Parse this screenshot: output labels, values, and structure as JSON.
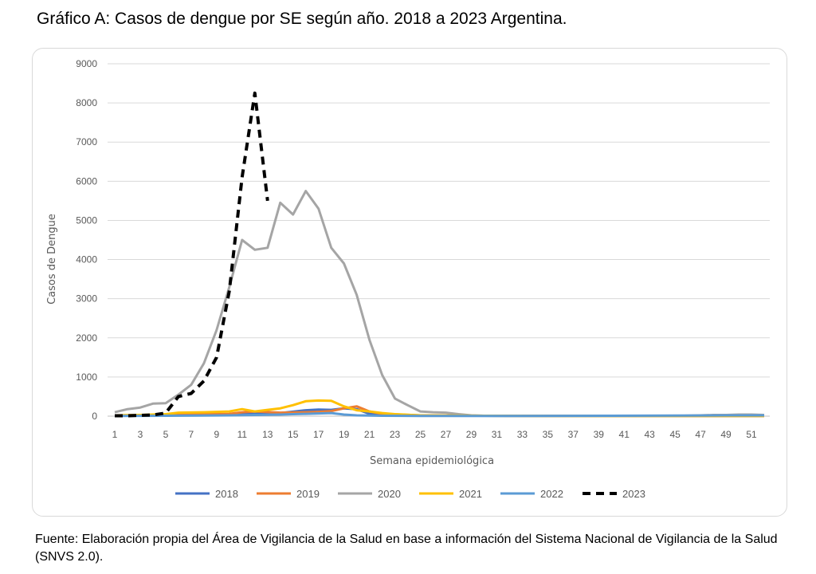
{
  "title": "Gráfico A: Casos de dengue por SE según año. 2018 a 2023 Argentina.",
  "source": "Fuente: Elaboración propia del Área de Vigilancia de la Salud en base a información del Sistema Nacional  de Vigilancia de la Salud (SNVS 2.0).",
  "chart_data": {
    "type": "line",
    "title": "",
    "xlabel": "Semana epidemiológica",
    "ylabel": "Casos de Dengue",
    "ylim": [
      0,
      9000
    ],
    "yticks": [
      0,
      1000,
      2000,
      3000,
      4000,
      5000,
      6000,
      7000,
      8000,
      9000
    ],
    "xlim": [
      1,
      52
    ],
    "xticks": [
      1,
      3,
      5,
      7,
      9,
      11,
      13,
      15,
      17,
      19,
      21,
      23,
      25,
      27,
      29,
      31,
      33,
      35,
      37,
      39,
      41,
      43,
      45,
      47,
      49,
      51
    ],
    "grid": "horizontal",
    "legend": "bottom",
    "series": [
      {
        "name": "2018",
        "color": "#4472C4",
        "dash": false,
        "x": [
          1,
          5,
          10,
          14,
          16,
          17,
          18,
          19,
          20,
          21,
          23,
          27,
          35,
          45,
          52
        ],
        "y": [
          20,
          25,
          40,
          80,
          150,
          170,
          160,
          200,
          180,
          60,
          20,
          10,
          5,
          5,
          5
        ]
      },
      {
        "name": "2019",
        "color": "#ED7D31",
        "dash": false,
        "x": [
          1,
          5,
          10,
          11,
          12,
          14,
          16,
          17,
          18,
          19,
          20,
          21,
          22,
          25,
          30,
          52
        ],
        "y": [
          20,
          30,
          60,
          100,
          120,
          90,
          100,
          110,
          130,
          200,
          250,
          120,
          60,
          20,
          10,
          5
        ]
      },
      {
        "name": "2020",
        "color": "#A5A5A5",
        "dash": false,
        "x": [
          1,
          2,
          3,
          4,
          5,
          6,
          7,
          8,
          9,
          10,
          11,
          12,
          13,
          14,
          15,
          16,
          17,
          18,
          19,
          20,
          21,
          22,
          23,
          24,
          25,
          26,
          27,
          28,
          29,
          30,
          32,
          35,
          40,
          45,
          47,
          48,
          49,
          50,
          51,
          52
        ],
        "y": [
          100,
          180,
          220,
          320,
          330,
          550,
          800,
          1350,
          2200,
          3300,
          4500,
          4250,
          4300,
          5450,
          5150,
          5750,
          5300,
          4300,
          3900,
          3100,
          1950,
          1050,
          450,
          280,
          120,
          100,
          90,
          50,
          20,
          10,
          5,
          5,
          5,
          5,
          20,
          30,
          30,
          40,
          40,
          30
        ]
      },
      {
        "name": "2021",
        "color": "#FFC000",
        "dash": false,
        "x": [
          1,
          3,
          5,
          6,
          8,
          9,
          10,
          11,
          12,
          13,
          14,
          15,
          16,
          17,
          18,
          19,
          20,
          21,
          22,
          23,
          25,
          30,
          35,
          52
        ],
        "y": [
          20,
          30,
          50,
          90,
          100,
          110,
          120,
          180,
          120,
          160,
          200,
          280,
          380,
          400,
          390,
          250,
          150,
          120,
          80,
          50,
          20,
          10,
          5,
          5
        ]
      },
      {
        "name": "2022",
        "color": "#5B9BD5",
        "dash": false,
        "x": [
          1,
          5,
          10,
          14,
          15,
          16,
          17,
          18,
          19,
          20,
          22,
          25,
          30,
          40,
          45,
          49,
          52
        ],
        "y": [
          5,
          10,
          20,
          40,
          50,
          60,
          70,
          80,
          40,
          20,
          10,
          5,
          5,
          10,
          15,
          20,
          20
        ]
      },
      {
        "name": "2023",
        "color": "#000000",
        "dash": true,
        "x": [
          1,
          2,
          3,
          4,
          5,
          6,
          7,
          8,
          9,
          10,
          11,
          12,
          13
        ],
        "y": [
          10,
          10,
          20,
          30,
          80,
          500,
          580,
          900,
          1500,
          3200,
          6100,
          8250,
          5500
        ]
      }
    ]
  }
}
